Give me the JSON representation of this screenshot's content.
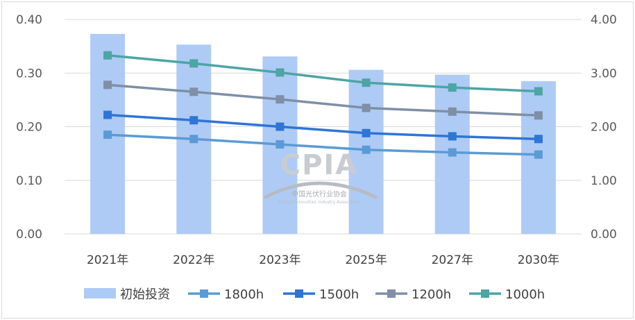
{
  "chart_data": {
    "type": "bar+line",
    "categories": [
      "2021年",
      "2022年",
      "2023年",
      "2025年",
      "2027年",
      "2030年"
    ],
    "bar_series": {
      "name": "初始投资",
      "axis": "right",
      "values": [
        3.73,
        3.53,
        3.31,
        3.06,
        2.97,
        2.85
      ],
      "color": "#aecbf5"
    },
    "line_series": [
      {
        "name": "1800h",
        "axis": "left",
        "values": [
          0.185,
          0.177,
          0.167,
          0.157,
          0.152,
          0.148
        ],
        "color": "#5b9bd5"
      },
      {
        "name": "1500h",
        "axis": "left",
        "values": [
          0.222,
          0.212,
          0.2,
          0.188,
          0.182,
          0.177
        ],
        "color": "#2e75d6"
      },
      {
        "name": "1200h",
        "axis": "left",
        "values": [
          0.278,
          0.265,
          0.251,
          0.235,
          0.228,
          0.221
        ],
        "color": "#7f8fa6"
      },
      {
        "name": "1000h",
        "axis": "left",
        "values": [
          0.333,
          0.318,
          0.301,
          0.282,
          0.273,
          0.266
        ],
        "color": "#4da5a5"
      }
    ],
    "left_axis": {
      "min": 0,
      "max": 0.4,
      "ticks": [
        "0.00",
        "0.10",
        "0.20",
        "0.30",
        "0.40"
      ]
    },
    "right_axis": {
      "min": 0,
      "max": 4,
      "ticks": [
        "0.00",
        "1.00",
        "2.00",
        "3.00",
        "4.00"
      ]
    },
    "grid": true,
    "legend_position": "bottom"
  },
  "watermark": {
    "text": "CPIA",
    "subtitle": "中国光伏行业协会",
    "subtitle_en": "China Photovoltaic Industry Association"
  }
}
